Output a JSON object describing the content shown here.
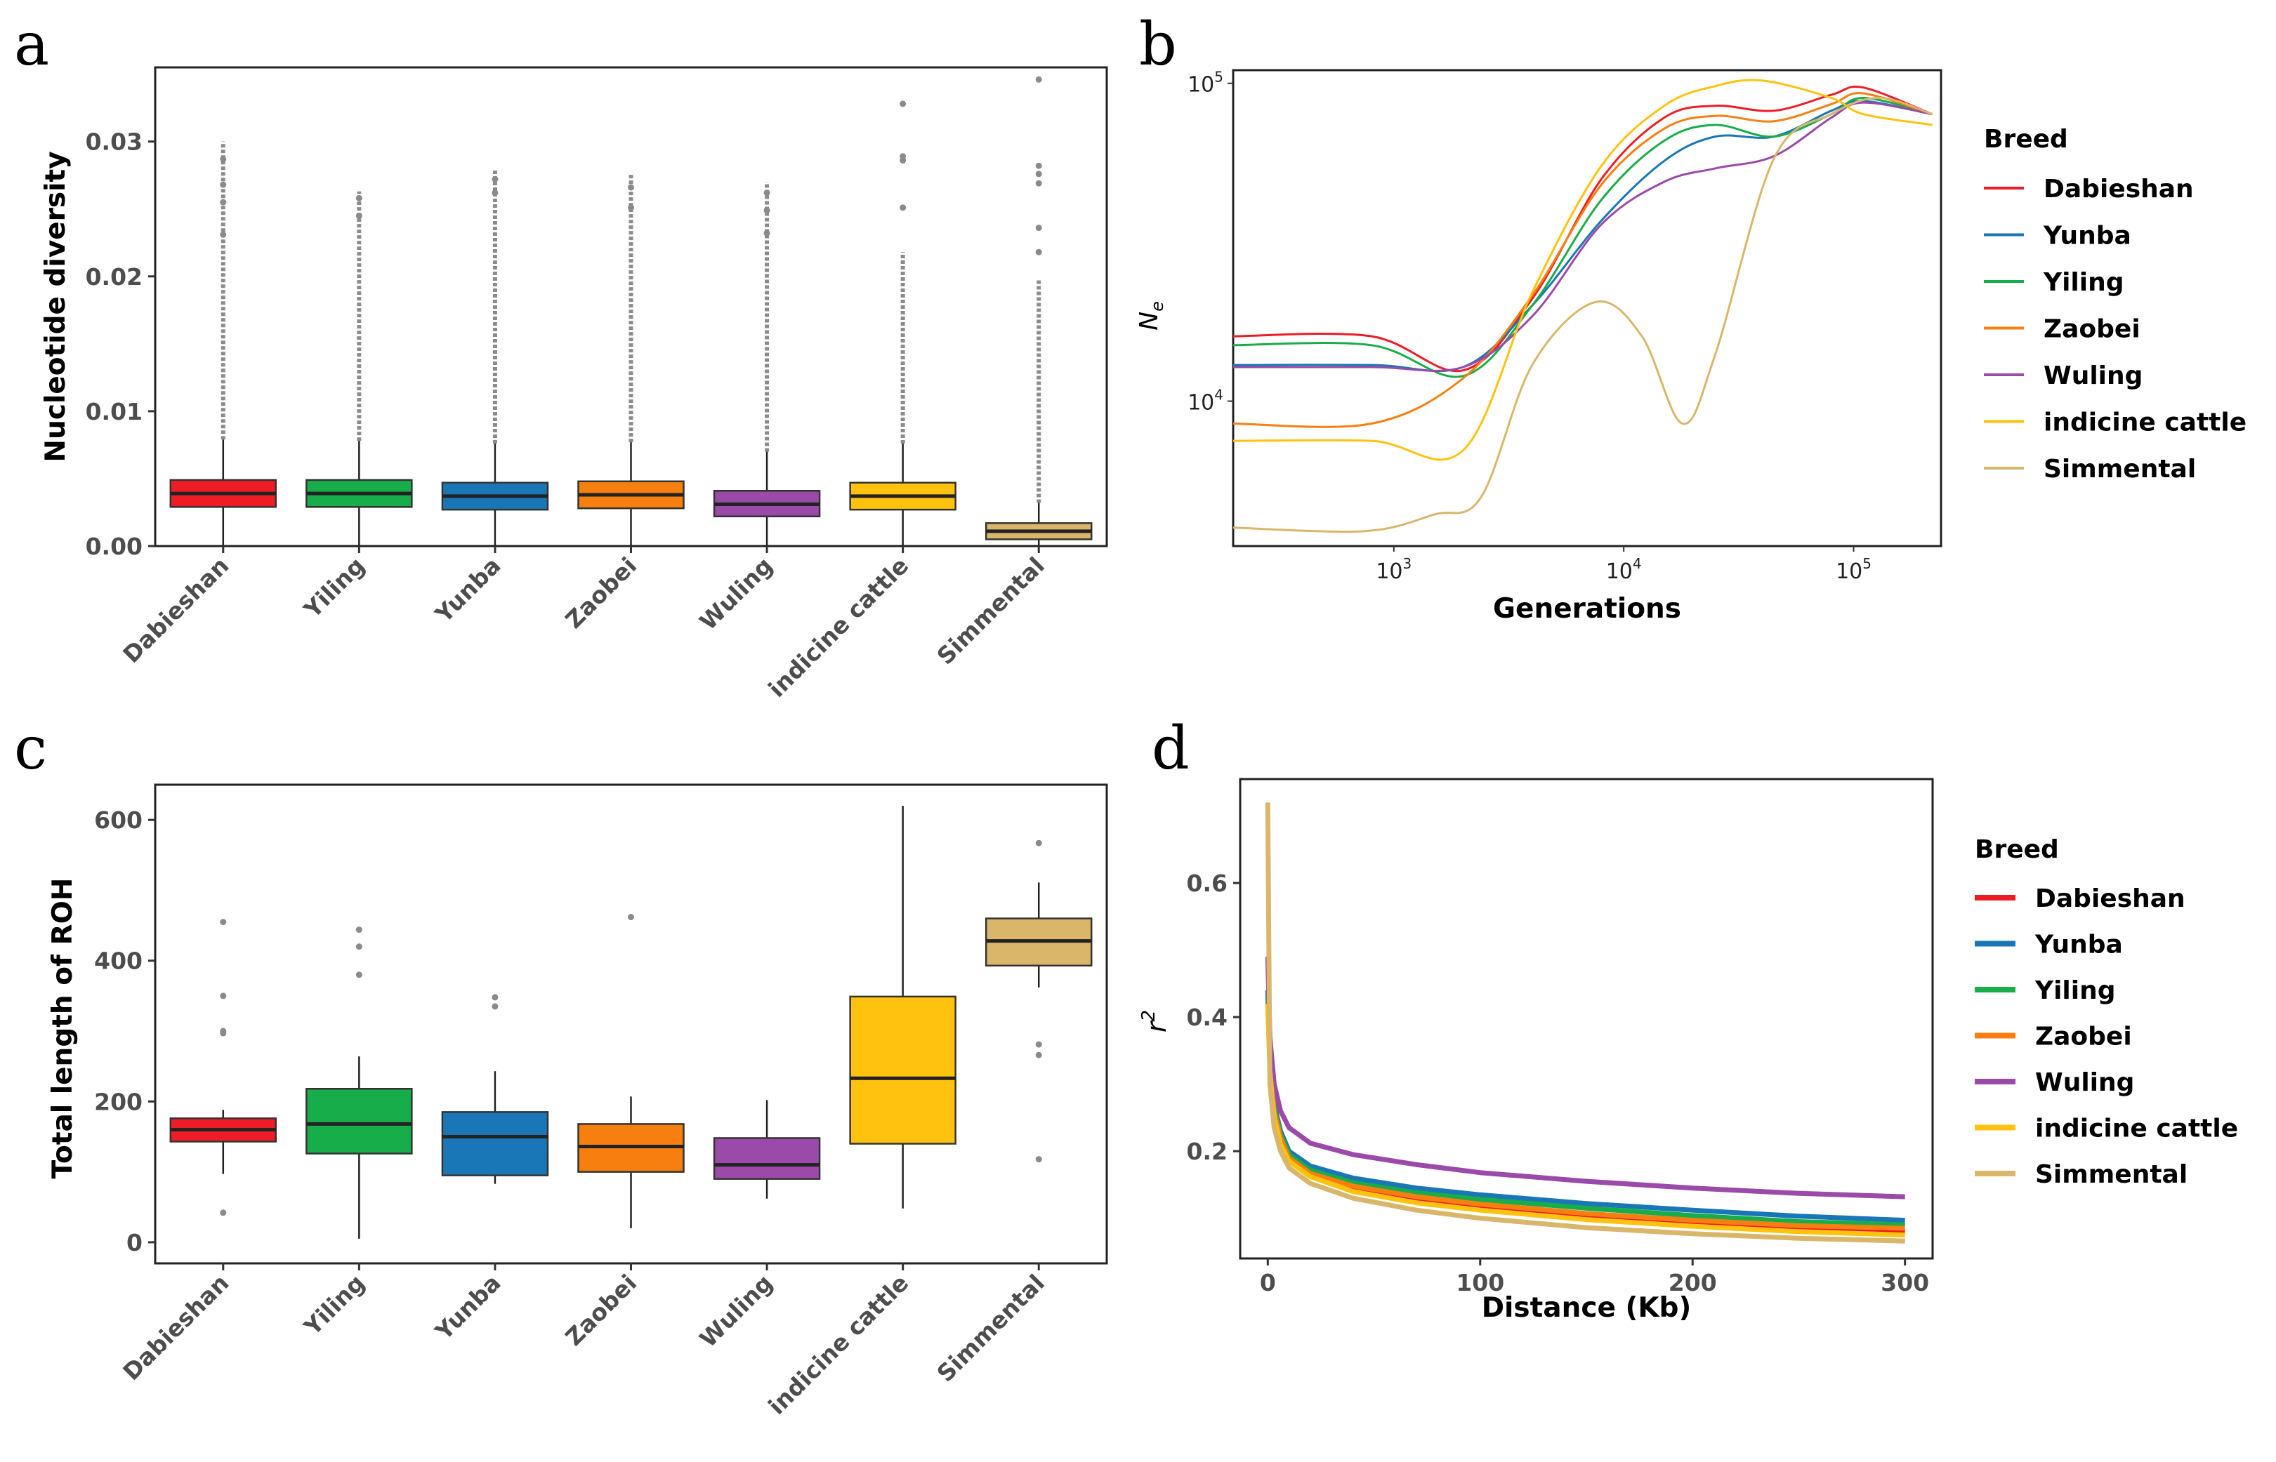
{
  "breed_colors": {
    "Dabieshan": "#ee1c25",
    "Yunba": "#1a77b7",
    "Yiling": "#17ad4a",
    "Zaobei": "#f77f10",
    "Wuling": "#9b4aa9",
    "indicine cattle": "#ffc20e",
    "Simmental": "#d9b66a"
  },
  "chart_data": [
    {
      "id": "a",
      "panel_label": "a",
      "type": "box",
      "ylabel": "Nucleotide diversity",
      "xlabel": "",
      "ylim": [
        0,
        0.0355
      ],
      "yticks": [
        0,
        0.01,
        0.02,
        0.03
      ],
      "yticklabels": [
        "0.00",
        "0.01",
        "0.02",
        "0.03"
      ],
      "categories": [
        "Dabieshan",
        "Yiling",
        "Yunba",
        "Zaobei",
        "Wuling",
        "indicine cattle",
        "Simmental"
      ],
      "boxes": [
        {
          "name": "Dabieshan",
          "min": 0.0,
          "q1": 0.0029,
          "median": 0.0039,
          "q3": 0.0049,
          "max": 0.0079,
          "outlier_top": 0.03,
          "outliers": [
            0.0231,
            0.0255,
            0.0268,
            0.0287
          ]
        },
        {
          "name": "Yiling",
          "min": 0.0,
          "q1": 0.0029,
          "median": 0.0039,
          "q3": 0.0049,
          "max": 0.0078,
          "outlier_top": 0.0263,
          "outliers": [
            0.0245,
            0.0258
          ]
        },
        {
          "name": "Yunba",
          "min": 0.0,
          "q1": 0.0027,
          "median": 0.0037,
          "q3": 0.0047,
          "max": 0.0076,
          "outlier_top": 0.0279,
          "outliers": [
            0.0262,
            0.0272
          ]
        },
        {
          "name": "Zaobei",
          "min": 0.0,
          "q1": 0.0028,
          "median": 0.0038,
          "q3": 0.0048,
          "max": 0.0077,
          "outlier_top": 0.0276,
          "outliers": [
            0.0251,
            0.0266
          ]
        },
        {
          "name": "Wuling",
          "min": 0.0,
          "q1": 0.0022,
          "median": 0.0031,
          "q3": 0.0041,
          "max": 0.007,
          "outlier_top": 0.027,
          "outliers": [
            0.0232,
            0.0249,
            0.0262
          ]
        },
        {
          "name": "indicine cattle",
          "min": 0.0,
          "q1": 0.0027,
          "median": 0.0037,
          "q3": 0.0047,
          "max": 0.0076,
          "outlier_top": 0.0218,
          "outliers": [
            0.0251,
            0.0286,
            0.0289,
            0.0328
          ]
        },
        {
          "name": "Simmental",
          "min": 0.0,
          "q1": 0.0005,
          "median": 0.0011,
          "q3": 0.0017,
          "max": 0.0032,
          "outlier_top": 0.0198,
          "outliers": [
            0.0218,
            0.0236,
            0.0269,
            0.0276,
            0.0282,
            0.0346
          ]
        }
      ]
    },
    {
      "id": "b",
      "panel_label": "b",
      "type": "line",
      "xscale": "log",
      "yscale": "log",
      "xlabel": "Generations",
      "ylabel": "Ne",
      "xlim": [
        200,
        240000
      ],
      "ylim": [
        3500,
        110000
      ],
      "xticks": [
        1000,
        10000,
        100000
      ],
      "xtick_exponents": [
        "3",
        "4",
        "5"
      ],
      "yticks": [
        10000,
        100000
      ],
      "ytick_exponents": [
        "4",
        "5"
      ],
      "tick_base": "10",
      "legend_title": "Breed",
      "legend_position": "right",
      "series": [
        {
          "name": "Dabieshan",
          "x": [
            200,
            800,
            2000,
            4000,
            8000,
            15000,
            25000,
            45000,
            80000,
            110000,
            220000
          ],
          "y": [
            16000,
            16000,
            12500,
            21000,
            50000,
            78000,
            85000,
            82000,
            92000,
            97000,
            80000
          ]
        },
        {
          "name": "Yunba",
          "x": [
            200,
            800,
            2000,
            4000,
            8000,
            15000,
            25000,
            45000,
            80000,
            110000,
            220000
          ],
          "y": [
            13000,
            13000,
            12800,
            20000,
            37000,
            57000,
            68000,
            68000,
            82000,
            88000,
            80000
          ]
        },
        {
          "name": "Yiling",
          "x": [
            200,
            800,
            2000,
            4000,
            8000,
            15000,
            25000,
            45000,
            80000,
            110000,
            220000
          ],
          "y": [
            15000,
            15000,
            12000,
            20000,
            43000,
            66000,
            74000,
            68000,
            80000,
            90000,
            80000
          ]
        },
        {
          "name": "Zaobei",
          "x": [
            200,
            800,
            2000,
            4000,
            8000,
            15000,
            25000,
            45000,
            80000,
            110000,
            220000
          ],
          "y": [
            8500,
            8500,
            11800,
            21500,
            48000,
            72000,
            79000,
            76000,
            86000,
            93000,
            80000
          ]
        },
        {
          "name": "Wuling",
          "x": [
            200,
            800,
            2000,
            4000,
            8000,
            15000,
            25000,
            45000,
            80000,
            110000,
            220000
          ],
          "y": [
            12800,
            12800,
            12800,
            18500,
            36000,
            49000,
            54000,
            59000,
            78000,
            87000,
            80000
          ]
        },
        {
          "name": "indicine cattle",
          "x": [
            200,
            800,
            2000,
            4000,
            8000,
            15000,
            25000,
            40000,
            80000,
            110000,
            220000
          ],
          "y": [
            7500,
            7500,
            7000,
            22000,
            55000,
            85000,
            98000,
            102000,
            90000,
            80000,
            74000
          ]
        },
        {
          "name": "Simmental",
          "x": [
            200,
            750,
            1500,
            2400,
            4000,
            7500,
            12000,
            18000,
            25000,
            45000,
            80000,
            130000,
            220000
          ],
          "y": [
            4000,
            3900,
            4400,
            5000,
            13000,
            20500,
            16000,
            8500,
            14000,
            58000,
            80000,
            90000,
            80000
          ]
        }
      ]
    },
    {
      "id": "c",
      "panel_label": "c",
      "type": "box",
      "ylabel": "Total length of ROH",
      "xlabel": "",
      "ylim": [
        -30,
        650
      ],
      "yticks": [
        0,
        200,
        400,
        600
      ],
      "yticklabels": [
        "0",
        "200",
        "400",
        "600"
      ],
      "categories": [
        "Dabieshan",
        "Yiling",
        "Yunba",
        "Zaobei",
        "Wuling",
        "indicine cattle",
        "Simmental"
      ],
      "boxes": [
        {
          "name": "Dabieshan",
          "min": 97,
          "q1": 143,
          "median": 160,
          "q3": 176,
          "max": 188,
          "outliers": [
            42,
            297,
            300,
            350,
            455
          ]
        },
        {
          "name": "Yiling",
          "min": 5,
          "q1": 126,
          "median": 168,
          "q3": 218,
          "max": 264,
          "outliers": [
            380,
            420,
            444
          ]
        },
        {
          "name": "Yunba",
          "min": 83,
          "q1": 95,
          "median": 150,
          "q3": 185,
          "max": 243,
          "outliers": [
            335,
            348
          ]
        },
        {
          "name": "Zaobei",
          "min": 20,
          "q1": 100,
          "median": 136,
          "q3": 168,
          "max": 207,
          "outliers": [
            462
          ]
        },
        {
          "name": "Wuling",
          "min": 62,
          "q1": 90,
          "median": 110,
          "q3": 148,
          "max": 202,
          "outliers": []
        },
        {
          "name": "indicine cattle",
          "min": 48,
          "q1": 140,
          "median": 233,
          "q3": 349,
          "max": 620,
          "outliers": []
        },
        {
          "name": "Simmental",
          "min": 362,
          "q1": 393,
          "median": 428,
          "q3": 460,
          "max": 511,
          "outliers": [
            118,
            266,
            281,
            567
          ]
        }
      ]
    },
    {
      "id": "d",
      "panel_label": "d",
      "type": "line",
      "xlabel": "Distance (Kb)",
      "ylabel": "r2",
      "ylabel_base": "r",
      "ylabel_sup": "2",
      "xlim": [
        -13,
        313
      ],
      "ylim": [
        0.04,
        0.755
      ],
      "xticks": [
        0,
        100,
        200,
        300
      ],
      "xticklabels": [
        "0",
        "100",
        "200",
        "300"
      ],
      "yticks": [
        0.2,
        0.4,
        0.6
      ],
      "yticklabels": [
        "0.2",
        "0.4",
        "0.6"
      ],
      "legend_title": "Breed",
      "legend_position": "right",
      "series": [
        {
          "name": "Dabieshan",
          "x": [
            0,
            1,
            3,
            6,
            10,
            20,
            40,
            70,
            100,
            150,
            200,
            250,
            300
          ],
          "y": [
            0.42,
            0.33,
            0.26,
            0.22,
            0.19,
            0.165,
            0.145,
            0.128,
            0.117,
            0.103,
            0.093,
            0.085,
            0.08
          ]
        },
        {
          "name": "Yunba",
          "x": [
            0,
            1,
            3,
            6,
            10,
            20,
            40,
            70,
            100,
            150,
            200,
            250,
            300
          ],
          "y": [
            0.44,
            0.34,
            0.27,
            0.23,
            0.2,
            0.178,
            0.16,
            0.145,
            0.135,
            0.122,
            0.112,
            0.103,
            0.097
          ]
        },
        {
          "name": "Yiling",
          "x": [
            0,
            1,
            3,
            6,
            10,
            20,
            40,
            70,
            100,
            150,
            200,
            250,
            300
          ],
          "y": [
            0.43,
            0.335,
            0.265,
            0.225,
            0.195,
            0.172,
            0.153,
            0.138,
            0.128,
            0.115,
            0.104,
            0.095,
            0.09
          ]
        },
        {
          "name": "Zaobei",
          "x": [
            0,
            1,
            3,
            6,
            10,
            20,
            40,
            70,
            100,
            150,
            200,
            250,
            300
          ],
          "y": [
            0.42,
            0.33,
            0.26,
            0.22,
            0.19,
            0.167,
            0.148,
            0.132,
            0.121,
            0.107,
            0.097,
            0.089,
            0.085
          ]
        },
        {
          "name": "Wuling",
          "x": [
            0,
            1,
            3,
            6,
            10,
            20,
            40,
            70,
            100,
            150,
            200,
            250,
            300
          ],
          "y": [
            0.49,
            0.37,
            0.3,
            0.26,
            0.235,
            0.212,
            0.195,
            0.18,
            0.168,
            0.155,
            0.145,
            0.137,
            0.132
          ]
        },
        {
          "name": "indicine cattle",
          "x": [
            0,
            1,
            3,
            6,
            10,
            20,
            40,
            70,
            100,
            150,
            200,
            250,
            300
          ],
          "y": [
            0.42,
            0.32,
            0.25,
            0.21,
            0.185,
            0.162,
            0.14,
            0.123,
            0.112,
            0.098,
            0.088,
            0.08,
            0.075
          ]
        },
        {
          "name": "Simmental",
          "x": [
            0,
            1,
            3,
            6,
            10,
            20,
            40,
            70,
            100,
            150,
            200,
            250,
            300
          ],
          "y": [
            0.72,
            0.3,
            0.235,
            0.2,
            0.175,
            0.152,
            0.13,
            0.112,
            0.1,
            0.086,
            0.077,
            0.07,
            0.066
          ]
        }
      ]
    }
  ]
}
